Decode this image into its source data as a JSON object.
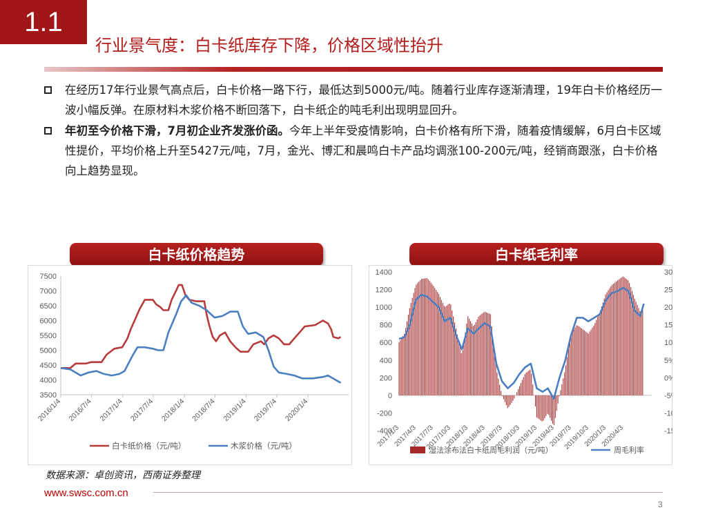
{
  "header": {
    "section_number": "1.1",
    "title": "行业景气度：白卡纸库存下降，价格区域性抬升"
  },
  "bullets": [
    {
      "bold": "",
      "text": "在经历17年行业景气高点后，白卡价格一路下行，最低达到5000元/吨。随着行业库存逐渐清理，19年白卡价格经历一波小幅反弹。在原材料木浆价格不断回落下，白卡纸企的吨毛利出现明显回升。"
    },
    {
      "bold": "年初至今价格下滑，7月初企业齐发涨价函。",
      "text": "今年上半年受疫情影响，白卡价格有所下滑，随着疫情缓解，6月白卡区域性提价，平均价格上升至5427元/吨，7月，金光、博汇和晨鸣白卡产品均调涨100-200元/吨，经销商跟涨，白卡价格向上趋势显现。"
    }
  ],
  "chart_titles": {
    "left": "白卡纸价格趋势",
    "right": "白卡纸毛利率"
  },
  "footer": {
    "source": "数据来源：卓创资讯，西南证券整理",
    "website": "www.swsc.com.cn",
    "page_number": "3"
  },
  "colors": {
    "accent_red": "#a11616",
    "series_red": "#b83a3a",
    "series_blue": "#4a7ec0",
    "bar_red": "#a62a2a"
  },
  "chart_data": [
    {
      "type": "line",
      "title": "白卡纸价格趋势",
      "ylim": [
        3500,
        7500
      ],
      "yticks": [
        3500,
        4000,
        4500,
        5000,
        5500,
        6000,
        6500,
        7000,
        7500
      ],
      "xlim": [
        "2016-01-04",
        "2020-08-31"
      ],
      "xticks": [
        "2016/1/4",
        "2016/7/4",
        "2017/1/4",
        "2017/7/4",
        "2018/1/4",
        "2018/7/4",
        "2019/1/4",
        "2019/7/4",
        "2020/1/4"
      ],
      "legend_position": "bottom",
      "grid": false,
      "series": [
        {
          "name": "白卡纸价格（元/吨）",
          "color": "#b83a3a",
          "points": [
            [
              "2016-01-04",
              4400
            ],
            [
              "2016-03-01",
              4400
            ],
            [
              "2016-04-01",
              4550
            ],
            [
              "2016-06-01",
              4550
            ],
            [
              "2016-07-01",
              4600
            ],
            [
              "2016-09-01",
              4600
            ],
            [
              "2016-10-01",
              4850
            ],
            [
              "2016-11-15",
              5050
            ],
            [
              "2017-01-01",
              5100
            ],
            [
              "2017-02-01",
              5400
            ],
            [
              "2017-02-20",
              5700
            ],
            [
              "2017-03-15",
              6000
            ],
            [
              "2017-04-15",
              6400
            ],
            [
              "2017-05-15",
              6700
            ],
            [
              "2017-07-01",
              6700
            ],
            [
              "2017-07-20",
              6550
            ],
            [
              "2017-08-15",
              6450
            ],
            [
              "2017-09-01",
              6350
            ],
            [
              "2017-10-01",
              6350
            ],
            [
              "2017-10-20",
              6700
            ],
            [
              "2017-11-15",
              7000
            ],
            [
              "2017-12-01",
              7200
            ],
            [
              "2017-12-20",
              7200
            ],
            [
              "2018-01-10",
              6850
            ],
            [
              "2018-02-01",
              6700
            ],
            [
              "2018-03-15",
              6650
            ],
            [
              "2018-05-01",
              6650
            ],
            [
              "2018-05-15",
              6200
            ],
            [
              "2018-06-01",
              5800
            ],
            [
              "2018-06-20",
              5450
            ],
            [
              "2018-07-10",
              5300
            ],
            [
              "2018-08-01",
              5500
            ],
            [
              "2018-09-01",
              5600
            ],
            [
              "2018-10-01",
              5300
            ],
            [
              "2018-11-01",
              5100
            ],
            [
              "2018-12-01",
              4950
            ],
            [
              "2019-01-15",
              4950
            ],
            [
              "2019-02-15",
              5200
            ],
            [
              "2019-04-01",
              5300
            ],
            [
              "2019-04-20",
              5200
            ],
            [
              "2019-05-15",
              5400
            ],
            [
              "2019-06-15",
              5500
            ],
            [
              "2019-07-15",
              5400
            ],
            [
              "2019-08-15",
              5200
            ],
            [
              "2019-09-15",
              5200
            ],
            [
              "2019-10-15",
              5400
            ],
            [
              "2019-11-15",
              5600
            ],
            [
              "2019-12-15",
              5800
            ],
            [
              "2020-02-15",
              5850
            ],
            [
              "2020-04-01",
              6000
            ],
            [
              "2020-05-01",
              5900
            ],
            [
              "2020-05-20",
              5700
            ],
            [
              "2020-06-01",
              5450
            ],
            [
              "2020-07-01",
              5400
            ],
            [
              "2020-07-15",
              5450
            ]
          ]
        },
        {
          "name": "木浆价格（元/吨）",
          "color": "#4a7ec0",
          "points": [
            [
              "2016-01-04",
              4400
            ],
            [
              "2016-03-01",
              4350
            ],
            [
              "2016-05-01",
              4150
            ],
            [
              "2016-06-15",
              4250
            ],
            [
              "2016-08-01",
              4300
            ],
            [
              "2016-09-15",
              4200
            ],
            [
              "2016-11-01",
              4150
            ],
            [
              "2016-12-15",
              4200
            ],
            [
              "2017-01-15",
              4300
            ],
            [
              "2017-03-01",
              4800
            ],
            [
              "2017-04-01",
              5100
            ],
            [
              "2017-05-15",
              5100
            ],
            [
              "2017-07-01",
              5050
            ],
            [
              "2017-08-01",
              5000
            ],
            [
              "2017-09-01",
              5000
            ],
            [
              "2017-10-01",
              5600
            ],
            [
              "2017-11-15",
              6200
            ],
            [
              "2017-12-15",
              6650
            ],
            [
              "2018-01-15",
              6850
            ],
            [
              "2018-02-15",
              6600
            ],
            [
              "2018-04-01",
              6500
            ],
            [
              "2018-05-15",
              6350
            ],
            [
              "2018-07-01",
              6100
            ],
            [
              "2018-08-15",
              6150
            ],
            [
              "2018-10-01",
              6300
            ],
            [
              "2018-11-15",
              6300
            ],
            [
              "2018-12-15",
              5800
            ],
            [
              "2019-01-15",
              5550
            ],
            [
              "2019-03-01",
              5600
            ],
            [
              "2019-04-15",
              5450
            ],
            [
              "2019-05-15",
              5000
            ],
            [
              "2019-06-15",
              4450
            ],
            [
              "2019-07-15",
              4250
            ],
            [
              "2019-09-01",
              4200
            ],
            [
              "2019-10-15",
              4150
            ],
            [
              "2019-12-01",
              4050
            ],
            [
              "2020-02-01",
              4050
            ],
            [
              "2020-04-01",
              4100
            ],
            [
              "2020-05-01",
              4150
            ],
            [
              "2020-06-15",
              4000
            ],
            [
              "2020-07-15",
              3900
            ]
          ]
        }
      ]
    },
    {
      "type": "bar+line",
      "title": "白卡纸毛利率",
      "y_left_lim": [
        -400,
        1400
      ],
      "y_left_ticks": [
        -400,
        -200,
        0,
        200,
        400,
        600,
        800,
        1000,
        1200,
        1400
      ],
      "y_left_tick_labels": [
        "-400",
        "-200",
        "0",
        "200",
        "400",
        "600",
        "800",
        "1000",
        "1200",
        "1400"
      ],
      "y_right_lim": [
        -15,
        30
      ],
      "y_right_ticks": [
        -15,
        -10,
        -5,
        0,
        5,
        10,
        15,
        20,
        25,
        30
      ],
      "y_right_tick_labels": [
        "-15%",
        "-10%",
        "-5%",
        "0%",
        "5%",
        "10%",
        "15%",
        "20%",
        "25%",
        "30%"
      ],
      "xlim": [
        "2017-01-03",
        "2020-08-31"
      ],
      "xticks": [
        "2017/1/3",
        "2017/4/3",
        "2017/7/3",
        "2017/10/3",
        "2018/1/3",
        "2018/4/3",
        "2018/7/3",
        "2018/10/3",
        "2019/1/3",
        "2019/4/3",
        "2019/7/3",
        "2019/10/3",
        "2020/1/3",
        "2020/4/3"
      ],
      "legend_position": "bottom",
      "grid": false,
      "bar_series": {
        "name": "湿法涂布法白卡纸周毛利润（元/吨）",
        "color": "#a62a2a",
        "points": [
          [
            "2017-01-03",
            600
          ],
          [
            "2017-02-01",
            700
          ],
          [
            "2017-03-01",
            1000
          ],
          [
            "2017-04-01",
            1250
          ],
          [
            "2017-05-01",
            1320
          ],
          [
            "2017-06-01",
            1330
          ],
          [
            "2017-07-01",
            1250
          ],
          [
            "2017-08-01",
            1150
          ],
          [
            "2017-09-01",
            1000
          ],
          [
            "2017-10-01",
            1050
          ],
          [
            "2017-11-01",
            750
          ],
          [
            "2017-12-01",
            450
          ],
          [
            "2018-01-01",
            900
          ],
          [
            "2018-02-01",
            780
          ],
          [
            "2018-03-01",
            900
          ],
          [
            "2018-04-01",
            950
          ],
          [
            "2018-05-01",
            920
          ],
          [
            "2018-06-01",
            300
          ],
          [
            "2018-07-01",
            0
          ],
          [
            "2018-08-01",
            -150
          ],
          [
            "2018-09-01",
            -50
          ],
          [
            "2018-10-01",
            100
          ],
          [
            "2018-11-01",
            250
          ],
          [
            "2018-12-01",
            300
          ],
          [
            "2019-01-01",
            -250
          ],
          [
            "2019-02-01",
            -300
          ],
          [
            "2019-03-01",
            -200
          ],
          [
            "2019-04-01",
            -350
          ],
          [
            "2019-05-01",
            0
          ],
          [
            "2019-06-01",
            300
          ],
          [
            "2019-07-01",
            700
          ],
          [
            "2019-08-01",
            800
          ],
          [
            "2019-09-01",
            750
          ],
          [
            "2019-10-01",
            700
          ],
          [
            "2019-11-01",
            800
          ],
          [
            "2019-12-01",
            950
          ],
          [
            "2020-01-01",
            1150
          ],
          [
            "2020-02-01",
            1250
          ],
          [
            "2020-03-01",
            1300
          ],
          [
            "2020-04-01",
            1350
          ],
          [
            "2020-05-01",
            1300
          ],
          [
            "2020-06-01",
            1100
          ],
          [
            "2020-07-01",
            950
          ],
          [
            "2020-07-20",
            1000
          ]
        ]
      },
      "line_series": {
        "name": "周毛利率",
        "color": "#4a7ec0",
        "points": [
          [
            "2017-01-03",
            11
          ],
          [
            "2017-02-01",
            11.5
          ],
          [
            "2017-03-01",
            15
          ],
          [
            "2017-04-01",
            22
          ],
          [
            "2017-05-01",
            23.5
          ],
          [
            "2017-06-01",
            23
          ],
          [
            "2017-07-01",
            21.5
          ],
          [
            "2017-08-01",
            20
          ],
          [
            "2017-09-01",
            16
          ],
          [
            "2017-10-01",
            17
          ],
          [
            "2017-11-01",
            12
          ],
          [
            "2017-12-01",
            8
          ],
          [
            "2018-01-01",
            14
          ],
          [
            "2018-02-01",
            12.5
          ],
          [
            "2018-03-01",
            14
          ],
          [
            "2018-04-01",
            15.5
          ],
          [
            "2018-05-01",
            14.5
          ],
          [
            "2018-06-01",
            4
          ],
          [
            "2018-07-01",
            -1
          ],
          [
            "2018-08-01",
            -3
          ],
          [
            "2018-09-01",
            -1.5
          ],
          [
            "2018-10-01",
            1
          ],
          [
            "2018-11-01",
            3
          ],
          [
            "2018-12-01",
            4
          ],
          [
            "2019-01-01",
            -3
          ],
          [
            "2019-02-01",
            -4
          ],
          [
            "2019-03-01",
            -3
          ],
          [
            "2019-04-01",
            -6
          ],
          [
            "2019-05-01",
            0
          ],
          [
            "2019-06-01",
            5
          ],
          [
            "2019-07-01",
            12
          ],
          [
            "2019-08-01",
            17
          ],
          [
            "2019-09-01",
            17
          ],
          [
            "2019-10-01",
            16
          ],
          [
            "2019-11-01",
            17
          ],
          [
            "2019-12-01",
            18
          ],
          [
            "2020-01-01",
            22
          ],
          [
            "2020-02-01",
            24
          ],
          [
            "2020-03-01",
            24.5
          ],
          [
            "2020-04-01",
            25.5
          ],
          [
            "2020-05-01",
            24.5
          ],
          [
            "2020-06-01",
            19
          ],
          [
            "2020-07-01",
            17.5
          ],
          [
            "2020-07-20",
            21
          ]
        ]
      }
    }
  ]
}
